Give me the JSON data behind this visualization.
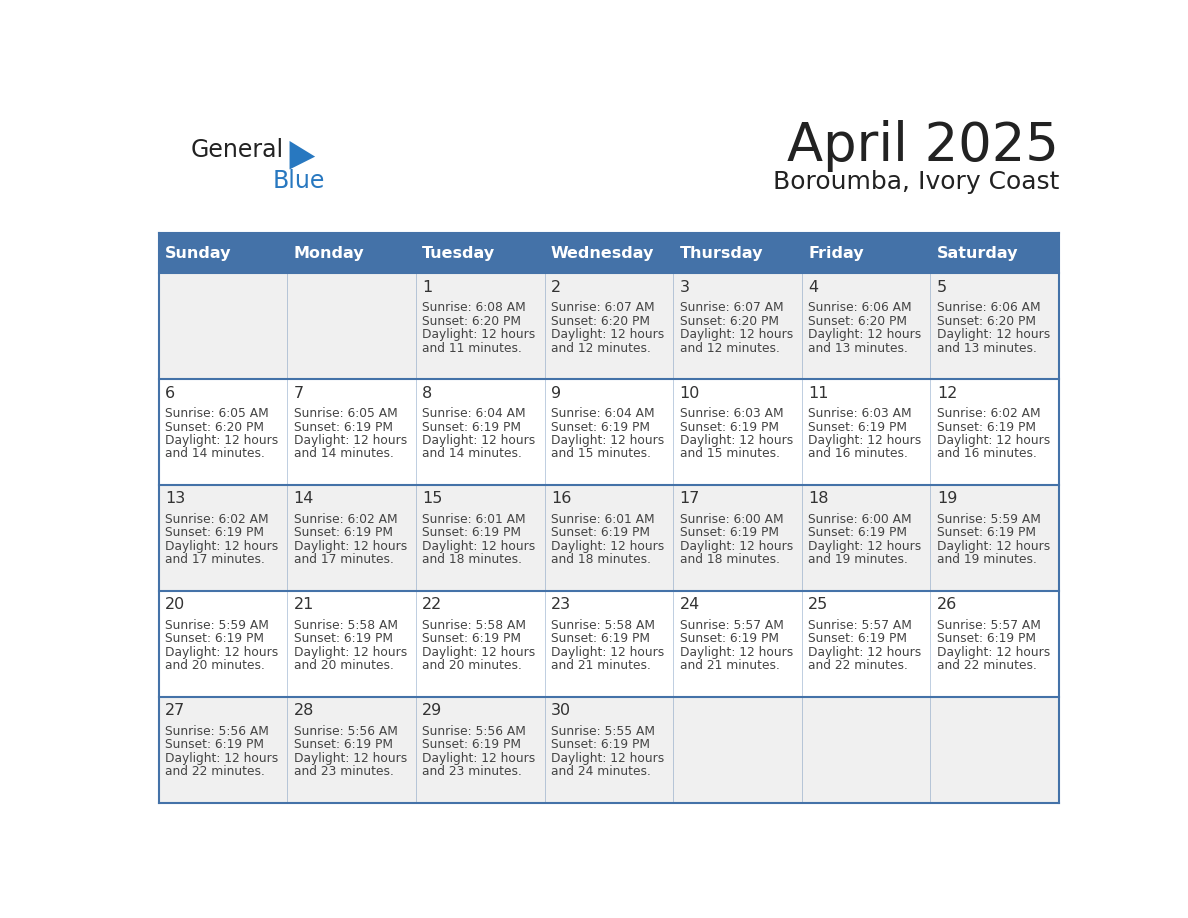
{
  "title": "April 2025",
  "subtitle": "Boroumba, Ivory Coast",
  "days_of_week": [
    "Sunday",
    "Monday",
    "Tuesday",
    "Wednesday",
    "Thursday",
    "Friday",
    "Saturday"
  ],
  "header_bg": "#4472A8",
  "header_text": "#FFFFFF",
  "cell_bg_even": "#F0F0F0",
  "cell_bg_odd": "#FFFFFF",
  "cell_border": "#4472A8",
  "day_number_color": "#333333",
  "cell_text_color": "#444444",
  "title_color": "#222222",
  "subtitle_color": "#222222",
  "logo_general_color": "#222222",
  "logo_blue_color": "#2878C0",
  "calendar_data": [
    [
      null,
      null,
      {
        "day": 1,
        "sunrise": "6:08 AM",
        "sunset": "6:20 PM",
        "daylight_mins": "11 minutes."
      },
      {
        "day": 2,
        "sunrise": "6:07 AM",
        "sunset": "6:20 PM",
        "daylight_mins": "12 minutes."
      },
      {
        "day": 3,
        "sunrise": "6:07 AM",
        "sunset": "6:20 PM",
        "daylight_mins": "12 minutes."
      },
      {
        "day": 4,
        "sunrise": "6:06 AM",
        "sunset": "6:20 PM",
        "daylight_mins": "13 minutes."
      },
      {
        "day": 5,
        "sunrise": "6:06 AM",
        "sunset": "6:20 PM",
        "daylight_mins": "13 minutes."
      }
    ],
    [
      {
        "day": 6,
        "sunrise": "6:05 AM",
        "sunset": "6:20 PM",
        "daylight_mins": "14 minutes."
      },
      {
        "day": 7,
        "sunrise": "6:05 AM",
        "sunset": "6:19 PM",
        "daylight_mins": "14 minutes."
      },
      {
        "day": 8,
        "sunrise": "6:04 AM",
        "sunset": "6:19 PM",
        "daylight_mins": "14 minutes."
      },
      {
        "day": 9,
        "sunrise": "6:04 AM",
        "sunset": "6:19 PM",
        "daylight_mins": "15 minutes."
      },
      {
        "day": 10,
        "sunrise": "6:03 AM",
        "sunset": "6:19 PM",
        "daylight_mins": "15 minutes."
      },
      {
        "day": 11,
        "sunrise": "6:03 AM",
        "sunset": "6:19 PM",
        "daylight_mins": "16 minutes."
      },
      {
        "day": 12,
        "sunrise": "6:02 AM",
        "sunset": "6:19 PM",
        "daylight_mins": "16 minutes."
      }
    ],
    [
      {
        "day": 13,
        "sunrise": "6:02 AM",
        "sunset": "6:19 PM",
        "daylight_mins": "17 minutes."
      },
      {
        "day": 14,
        "sunrise": "6:02 AM",
        "sunset": "6:19 PM",
        "daylight_mins": "17 minutes."
      },
      {
        "day": 15,
        "sunrise": "6:01 AM",
        "sunset": "6:19 PM",
        "daylight_mins": "18 minutes."
      },
      {
        "day": 16,
        "sunrise": "6:01 AM",
        "sunset": "6:19 PM",
        "daylight_mins": "18 minutes."
      },
      {
        "day": 17,
        "sunrise": "6:00 AM",
        "sunset": "6:19 PM",
        "daylight_mins": "18 minutes."
      },
      {
        "day": 18,
        "sunrise": "6:00 AM",
        "sunset": "6:19 PM",
        "daylight_mins": "19 minutes."
      },
      {
        "day": 19,
        "sunrise": "5:59 AM",
        "sunset": "6:19 PM",
        "daylight_mins": "19 minutes."
      }
    ],
    [
      {
        "day": 20,
        "sunrise": "5:59 AM",
        "sunset": "6:19 PM",
        "daylight_mins": "20 minutes."
      },
      {
        "day": 21,
        "sunrise": "5:58 AM",
        "sunset": "6:19 PM",
        "daylight_mins": "20 minutes."
      },
      {
        "day": 22,
        "sunrise": "5:58 AM",
        "sunset": "6:19 PM",
        "daylight_mins": "20 minutes."
      },
      {
        "day": 23,
        "sunrise": "5:58 AM",
        "sunset": "6:19 PM",
        "daylight_mins": "21 minutes."
      },
      {
        "day": 24,
        "sunrise": "5:57 AM",
        "sunset": "6:19 PM",
        "daylight_mins": "21 minutes."
      },
      {
        "day": 25,
        "sunrise": "5:57 AM",
        "sunset": "6:19 PM",
        "daylight_mins": "22 minutes."
      },
      {
        "day": 26,
        "sunrise": "5:57 AM",
        "sunset": "6:19 PM",
        "daylight_mins": "22 minutes."
      }
    ],
    [
      {
        "day": 27,
        "sunrise": "5:56 AM",
        "sunset": "6:19 PM",
        "daylight_mins": "22 minutes."
      },
      {
        "day": 28,
        "sunrise": "5:56 AM",
        "sunset": "6:19 PM",
        "daylight_mins": "23 minutes."
      },
      {
        "day": 29,
        "sunrise": "5:56 AM",
        "sunset": "6:19 PM",
        "daylight_mins": "23 minutes."
      },
      {
        "day": 30,
        "sunrise": "5:55 AM",
        "sunset": "6:19 PM",
        "daylight_mins": "24 minutes."
      },
      null,
      null,
      null
    ]
  ]
}
